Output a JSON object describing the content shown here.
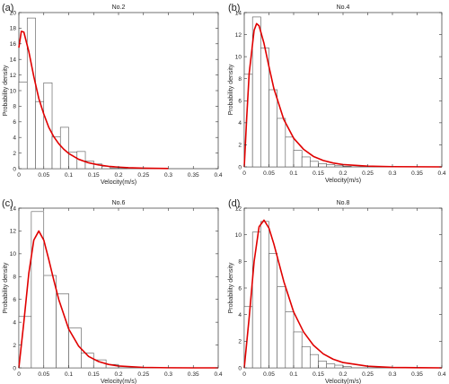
{
  "chart_data": [
    {
      "type": "bar+line",
      "panel_label": "(a)",
      "title": "No.2",
      "xlabel": "Velocity(m/s)",
      "ylabel": "Probability density",
      "xlim": [
        0,
        0.4
      ],
      "ylim": [
        0,
        20
      ],
      "xticks": [
        "0",
        "0.05",
        "0.1",
        "0.15",
        "0.2",
        "0.25",
        "0.3",
        "0.35",
        "0.4"
      ],
      "yticks": [
        "0",
        "2",
        "4",
        "6",
        "8",
        "10",
        "12",
        "14",
        "16",
        "18",
        "20"
      ],
      "bin_width": 0.0167,
      "histogram": {
        "bin_left": [
          0.0,
          0.0167,
          0.0333,
          0.05,
          0.0667,
          0.0833,
          0.1,
          0.1167,
          0.1333,
          0.15,
          0.1667,
          0.1833,
          0.2
        ],
        "values": [
          11.1,
          19.3,
          8.6,
          11.0,
          4.1,
          5.3,
          2.1,
          2.2,
          1.0,
          0.6,
          0.3,
          0.1,
          0.05
        ]
      },
      "fit_curve": {
        "x": [
          0.0,
          0.005,
          0.01,
          0.02,
          0.03,
          0.04,
          0.05,
          0.06,
          0.07,
          0.08,
          0.09,
          0.1,
          0.12,
          0.14,
          0.16,
          0.18,
          0.2,
          0.22,
          0.25,
          0.3
        ],
        "y": [
          15.5,
          17.6,
          17.5,
          15.0,
          11.8,
          9.0,
          7.0,
          5.3,
          4.1,
          3.2,
          2.5,
          1.95,
          1.2,
          0.75,
          0.48,
          0.3,
          0.2,
          0.12,
          0.06,
          0.02
        ]
      }
    },
    {
      "type": "bar+line",
      "panel_label": "(b)",
      "title": "No.4",
      "xlabel": "Velocity(m/s)",
      "ylabel": "Probability density",
      "xlim": [
        0,
        0.4
      ],
      "ylim": [
        0,
        14
      ],
      "xticks": [
        "0",
        "0.05",
        "0.1",
        "0.15",
        "0.2",
        "0.25",
        "0.3",
        "0.35",
        "0.4"
      ],
      "yticks": [
        "0",
        "2",
        "4",
        "6",
        "8",
        "10",
        "12",
        "14"
      ],
      "bin_width": 0.0167,
      "histogram": {
        "bin_left": [
          0.0,
          0.0167,
          0.0333,
          0.05,
          0.0667,
          0.0833,
          0.1,
          0.1167,
          0.1333,
          0.15,
          0.1667,
          0.1833,
          0.2
        ],
        "values": [
          8.4,
          13.6,
          10.8,
          7.0,
          4.4,
          2.7,
          1.5,
          0.9,
          0.5,
          0.3,
          0.2,
          0.1,
          0.05
        ]
      },
      "fit_curve": {
        "x": [
          0.0,
          0.005,
          0.01,
          0.02,
          0.025,
          0.03,
          0.04,
          0.05,
          0.06,
          0.08,
          0.1,
          0.12,
          0.14,
          0.16,
          0.18,
          0.2,
          0.25,
          0.3,
          0.35,
          0.4
        ],
        "y": [
          0.0,
          4.5,
          8.5,
          12.4,
          13.0,
          12.8,
          11.2,
          9.1,
          7.1,
          4.3,
          2.6,
          1.6,
          0.95,
          0.58,
          0.35,
          0.21,
          0.07,
          0.02,
          0.01,
          0.0
        ]
      }
    },
    {
      "type": "bar+line",
      "panel_label": "(c)",
      "title": "No.6",
      "xlabel": "Velocity(m/s)",
      "ylabel": "Probability density",
      "xlim": [
        0,
        0.4
      ],
      "ylim": [
        0,
        14
      ],
      "xticks": [
        "0",
        "0.05",
        "0.1",
        "0.15",
        "0.2",
        "0.25",
        "0.3",
        "0.35",
        "0.4"
      ],
      "yticks": [
        "0",
        "2",
        "4",
        "6",
        "8",
        "10",
        "12",
        "14"
      ],
      "bin_width": 0.025,
      "histogram": {
        "bin_left": [
          0.0,
          0.025,
          0.05,
          0.075,
          0.1,
          0.125,
          0.15,
          0.175
        ],
        "values": [
          4.5,
          13.7,
          8.1,
          6.5,
          3.5,
          1.3,
          0.7,
          0.3
        ]
      },
      "fit_curve": {
        "x": [
          0.0,
          0.01,
          0.02,
          0.03,
          0.04,
          0.05,
          0.06,
          0.07,
          0.08,
          0.1,
          0.12,
          0.14,
          0.16,
          0.18,
          0.2,
          0.25,
          0.3,
          0.35,
          0.4
        ],
        "y": [
          0.0,
          4.0,
          8.3,
          11.2,
          12.0,
          11.2,
          9.5,
          7.7,
          6.0,
          3.4,
          1.9,
          1.0,
          0.55,
          0.3,
          0.16,
          0.04,
          0.01,
          0.0,
          0.0
        ]
      }
    },
    {
      "type": "bar+line",
      "panel_label": "(d)",
      "title": "No.8",
      "xlabel": "Velocity(m/s)",
      "ylabel": "Probability density",
      "xlim": [
        0,
        0.4
      ],
      "ylim": [
        0,
        12
      ],
      "xticks": [
        "0",
        "0.05",
        "0.1",
        "0.15",
        "0.2",
        "0.25",
        "0.3",
        "0.35",
        "0.4"
      ],
      "yticks": [
        "0",
        "2",
        "4",
        "6",
        "8",
        "10",
        "12"
      ],
      "bin_width": 0.0167,
      "histogram": {
        "bin_left": [
          0.0,
          0.0167,
          0.0333,
          0.05,
          0.0667,
          0.0833,
          0.1,
          0.1167,
          0.1333,
          0.15,
          0.1667,
          0.1833,
          0.2
        ],
        "values": [
          4.6,
          10.2,
          11.0,
          8.6,
          6.1,
          4.2,
          2.7,
          1.6,
          1.0,
          0.5,
          0.3,
          0.2,
          0.1
        ]
      },
      "fit_curve": {
        "x": [
          0.0,
          0.01,
          0.02,
          0.03,
          0.04,
          0.05,
          0.06,
          0.07,
          0.08,
          0.1,
          0.12,
          0.14,
          0.16,
          0.18,
          0.2,
          0.25,
          0.3,
          0.35,
          0.4
        ],
        "y": [
          0.0,
          3.8,
          8.0,
          10.6,
          11.1,
          10.5,
          9.3,
          7.9,
          6.5,
          4.2,
          2.7,
          1.7,
          1.05,
          0.65,
          0.4,
          0.12,
          0.03,
          0.01,
          0.0
        ]
      }
    }
  ]
}
